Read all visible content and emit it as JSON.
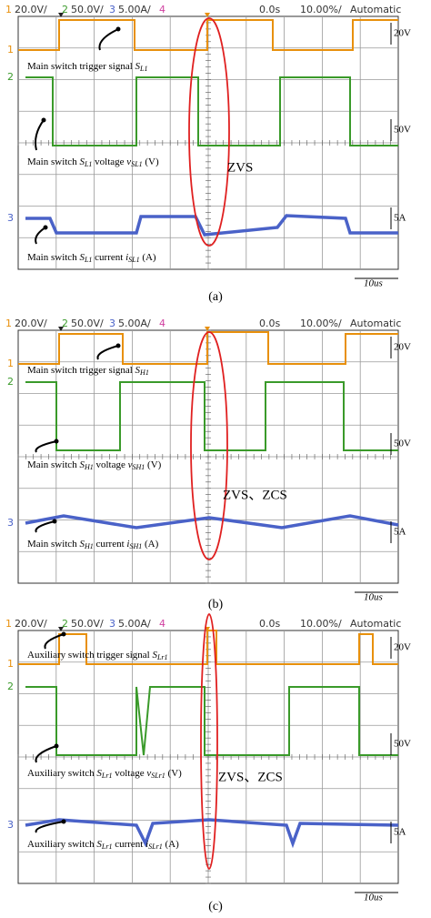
{
  "panels": [
    {
      "caption": "(a)",
      "header": {
        "ch": [
          "1",
          "2",
          "3",
          "4"
        ],
        "scales": [
          "20.0V/",
          "50.0V/",
          "5.00A/"
        ],
        "time": "0.0s",
        "timebase": "10.00%/",
        "mode": "Automatic"
      },
      "scales": [
        "20V",
        "50V",
        "5A",
        "10us"
      ],
      "labels": [
        [
          {
            "t": "Main switch trigger signal "
          },
          {
            "t": "S",
            "sub": "L1"
          }
        ],
        [
          {
            "t": "Main switch "
          },
          {
            "t": "S",
            "sub": "L1"
          },
          {
            "t": " voltage "
          },
          {
            "t": "v",
            "sub": "SL1"
          },
          {
            "t": " (V)"
          }
        ],
        [
          {
            "t": "Main switch "
          },
          {
            "t": "S",
            "sub": "L1"
          },
          {
            "t": " current "
          },
          {
            "t": "i",
            "sub": "SL1"
          },
          {
            "t": " (A)"
          }
        ]
      ],
      "mark": "ZVS"
    },
    {
      "caption": "(b)",
      "header": {
        "ch": [
          "1",
          "2",
          "3",
          "4"
        ],
        "scales": [
          "20.0V/",
          "50.0V/",
          "5.00A/"
        ],
        "time": "0.0s",
        "timebase": "10.00%/",
        "mode": "Automatic"
      },
      "scales": [
        "20V",
        "50V",
        "5A",
        "10us"
      ],
      "labels": [
        [
          {
            "t": "Main switch trigger signal "
          },
          {
            "t": "S",
            "sub": "H1"
          }
        ],
        [
          {
            "t": "Main switch "
          },
          {
            "t": "S",
            "sub": "H1"
          },
          {
            "t": " voltage "
          },
          {
            "t": "v",
            "sub": "SH1"
          },
          {
            "t": " (V)"
          }
        ],
        [
          {
            "t": "Main switch "
          },
          {
            "t": "S",
            "sub": "H1"
          },
          {
            "t": " current "
          },
          {
            "t": "i",
            "sub": "SH1"
          },
          {
            "t": " (A)"
          }
        ]
      ],
      "mark": "ZVS、ZCS"
    },
    {
      "caption": "(c)",
      "header": {
        "ch": [
          "1",
          "2",
          "3",
          "4"
        ],
        "scales": [
          "20.0V/",
          "50.0V/",
          "5.00A/"
        ],
        "time": "0.0s",
        "timebase": "10.00%/",
        "mode": "Automatic"
      },
      "scales": [
        "20V",
        "50V",
        "5A",
        "10us"
      ],
      "labels": [
        [
          {
            "t": "Auxiliary switch trigger signal "
          },
          {
            "t": "S",
            "sub": "Lr1"
          }
        ],
        [
          {
            "t": "Auxiliary switch "
          },
          {
            "t": "S",
            "sub": "Lr1"
          },
          {
            "t": " voltage "
          },
          {
            "t": "v",
            "sub": "SLr1"
          },
          {
            "t": " (V)"
          }
        ],
        [
          {
            "t": "Auxiliary switch "
          },
          {
            "t": "S",
            "sub": "Lr1"
          },
          {
            "t": " current "
          },
          {
            "t": "i",
            "sub": "SLr1"
          },
          {
            "t": " (A)"
          }
        ]
      ],
      "mark": "ZVS、ZCS"
    }
  ]
}
